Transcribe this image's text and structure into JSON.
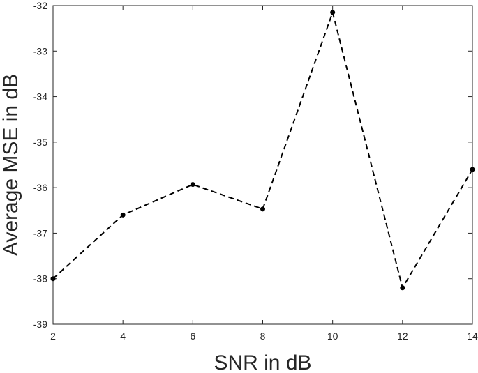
{
  "chart_data": {
    "type": "line",
    "title": "",
    "xlabel": "SNR in dB",
    "ylabel": "Average MSE in dB",
    "xlim": [
      2,
      14
    ],
    "ylim": [
      -39,
      -32
    ],
    "xticks": [
      "2",
      "4",
      "6",
      "8",
      "10",
      "12",
      "14"
    ],
    "yticks": [
      "-32",
      "-33",
      "-34",
      "-35",
      "-36",
      "-37",
      "-38",
      "-39"
    ],
    "grid": false,
    "legend": "none",
    "series": [
      {
        "x": [
          2,
          4,
          6,
          8,
          10,
          12,
          14
        ],
        "values": [
          -38.0,
          -36.6,
          -35.93,
          -36.47,
          -32.15,
          -38.2,
          -35.6
        ],
        "color": "#000000",
        "line_style": "dashed",
        "marker": "dot"
      }
    ]
  }
}
